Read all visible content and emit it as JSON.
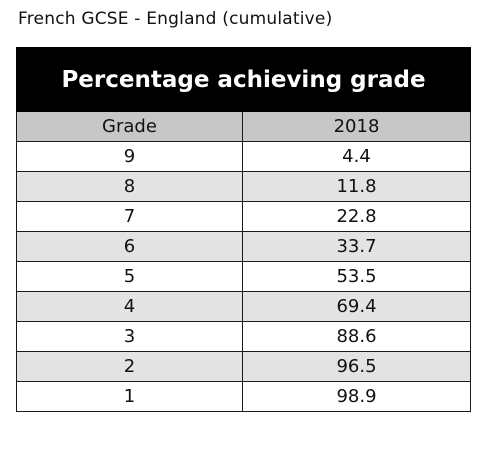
{
  "caption": "French GCSE - England (cumulative)",
  "table": {
    "title": "Percentage achieving grade",
    "columns": [
      "Grade",
      "2018"
    ],
    "rows": [
      {
        "grade": "9",
        "value": "4.4"
      },
      {
        "grade": "8",
        "value": "11.8"
      },
      {
        "grade": "7",
        "value": "22.8"
      },
      {
        "grade": "6",
        "value": "33.7"
      },
      {
        "grade": "5",
        "value": "53.5"
      },
      {
        "grade": "4",
        "value": "69.4"
      },
      {
        "grade": "3",
        "value": "88.6"
      },
      {
        "grade": "2",
        "value": "96.5"
      },
      {
        "grade": "1",
        "value": "98.9"
      }
    ]
  },
  "chart_data": {
    "type": "table",
    "title": "Percentage achieving grade",
    "columns": [
      "Grade",
      "2018"
    ],
    "categories": [
      "9",
      "8",
      "7",
      "6",
      "5",
      "4",
      "3",
      "2",
      "1"
    ],
    "values": [
      4.4,
      11.8,
      22.8,
      33.7,
      53.5,
      69.4,
      88.6,
      96.5,
      98.9
    ]
  }
}
